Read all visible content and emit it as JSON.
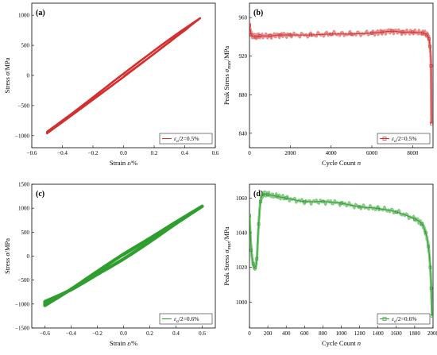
{
  "chart_data": [
    {
      "panel": "(a)",
      "type": "line",
      "xlabel": "Strain ε/%",
      "ylabel": "Stress σ/MPa",
      "xlim": [
        -0.6,
        0.6
      ],
      "ylim": [
        -1200,
        1200
      ],
      "xticks": [
        "−0.6",
        "−0.4",
        "−0.2",
        "0.0",
        "0.2",
        "0.4",
        "0.6"
      ],
      "yticks": [
        "−1000",
        "−500",
        "0",
        "500",
        "1000"
      ],
      "legend": {
        "label": "ε_a/2=0.5%",
        "position": "bottom-right"
      },
      "color": "#d32f2f",
      "series": [
        {
          "name": "ε_a/2=0.5%",
          "x": [
            -0.5,
            0.5,
            -0.5
          ],
          "y": [
            -960,
            950,
            -960
          ],
          "hysteresis_loop": true,
          "upper_branch": {
            "x": [
              -0.5,
              -0.3,
              0.0,
              0.3,
              0.5
            ],
            "y": [
              -935,
              -560,
              30,
              600,
              950
            ]
          },
          "lower_branch": {
            "x": [
              0.5,
              0.3,
              0.0,
              -0.3,
              -0.5
            ],
            "y": [
              950,
              555,
              -25,
              -590,
              -960
            ]
          }
        }
      ]
    },
    {
      "panel": "(b)",
      "type": "line",
      "xlabel": "Cycle Count n",
      "ylabel": "Peak Stress σ_max/MPa",
      "xlim": [
        0,
        9000
      ],
      "ylim": [
        825,
        975
      ],
      "xticks": [
        "0",
        "2000",
        "4000",
        "6000",
        "8000"
      ],
      "yticks": [
        "840",
        "880",
        "920",
        "960"
      ],
      "legend": {
        "label": "ε_a/2=0.5%",
        "position": "bottom-right"
      },
      "color": "#d32f2f",
      "series": [
        {
          "name": "ε_a/2=0.5%",
          "x": [
            0,
            100,
            300,
            500,
            1000,
            1500,
            2000,
            3000,
            4000,
            5000,
            6000,
            6500,
            7000,
            7500,
            8000,
            8500,
            8700,
            8800,
            8850,
            8900,
            8920
          ],
          "y": [
            952,
            942,
            940,
            941,
            941,
            942,
            942,
            942,
            943,
            943,
            944,
            945,
            946,
            945,
            945,
            944,
            942,
            938,
            930,
            910,
            850
          ]
        }
      ]
    },
    {
      "panel": "(c)",
      "type": "line",
      "xlabel": "Strain ε/%",
      "ylabel": "Stress σ/MPa",
      "xlim": [
        -0.7,
        0.7
      ],
      "ylim": [
        -1500,
        1500
      ],
      "xticks": [
        "−0.6",
        "−0.4",
        "−0.2",
        "0.0",
        "0.2",
        "0.4",
        "0.6"
      ],
      "yticks": [
        "−1500",
        "−1000",
        "−500",
        "0",
        "500",
        "1000",
        "1500"
      ],
      "legend": {
        "label": "ε_a/2=0.6%",
        "position": "bottom-right"
      },
      "color": "#2e9e2e",
      "series": [
        {
          "name": "ε_a/2=0.6%",
          "x": [
            -0.6,
            0.6,
            -0.6
          ],
          "y": [
            -1030,
            1040,
            -1030
          ],
          "hysteresis_loop": true,
          "upper_branch": {
            "x": [
              -0.6,
              -0.4,
              -0.2,
              0.0,
              0.2,
              0.4,
              0.6
            ],
            "y": [
              -950,
              -700,
              -380,
              -60,
              300,
              680,
              1040
            ]
          },
          "lower_branch": {
            "x": [
              0.6,
              0.4,
              0.2,
              0.0,
              -0.2,
              -0.4,
              -0.6
            ],
            "y": [
              1040,
              710,
              370,
              40,
              -320,
              -690,
              -1030
            ]
          }
        }
      ]
    },
    {
      "panel": "(d)",
      "type": "line",
      "xlabel": "Cycle Count n",
      "ylabel": "Peak Stress σ_max/MPa",
      "xlim": [
        0,
        2000
      ],
      "ylim": [
        985,
        1068
      ],
      "xticks": [
        "0",
        "200",
        "400",
        "600",
        "800",
        "1000",
        "1200",
        "1400",
        "1600",
        "1800",
        "2000"
      ],
      "yticks": [
        "1000",
        "1020",
        "1040",
        "1060"
      ],
      "legend": {
        "label": "ε_a/2=0.6%",
        "position": "bottom-right"
      },
      "color": "#2e9e2e",
      "series": [
        {
          "name": "ε_a/2=0.6%",
          "x": [
            0,
            20,
            40,
            60,
            80,
            100,
            120,
            150,
            200,
            300,
            400,
            600,
            800,
            1000,
            1200,
            1400,
            1600,
            1800,
            1880,
            1920,
            1950,
            1970,
            1980,
            1990
          ],
          "y": [
            1050,
            1030,
            1022,
            1020,
            1025,
            1045,
            1058,
            1062,
            1062,
            1061,
            1060,
            1058,
            1058,
            1057,
            1055,
            1054,
            1052,
            1048,
            1045,
            1040,
            1032,
            1020,
            1008,
            992
          ]
        }
      ]
    }
  ]
}
